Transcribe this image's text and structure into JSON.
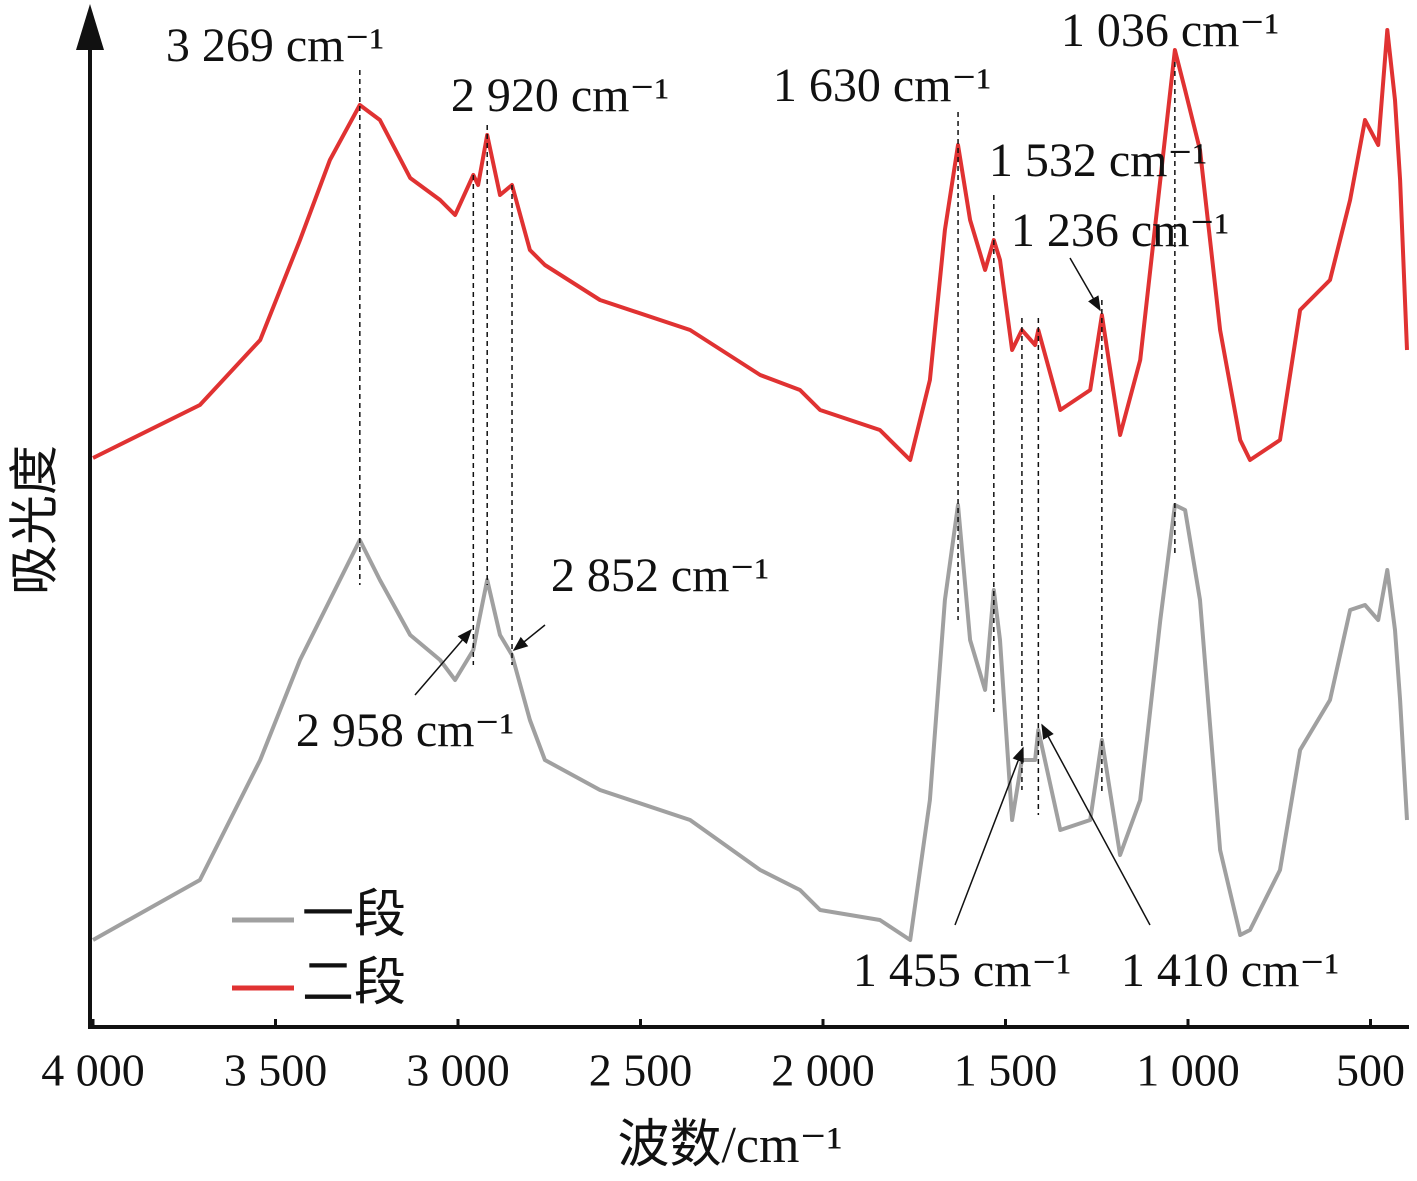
{
  "chart_data": {
    "type": "line",
    "y_label": "吸光度",
    "x_label": "波数/cm⁻¹",
    "xlim": [
      4000,
      400
    ],
    "ylim": [
      0,
      100
    ],
    "xticks": [
      {
        "value": 4000,
        "label": "4 000"
      },
      {
        "value": 3500,
        "label": "3 500"
      },
      {
        "value": 3000,
        "label": "3 000"
      },
      {
        "value": 2500,
        "label": "2 500"
      },
      {
        "value": 2000,
        "label": "2 000"
      },
      {
        "value": 1500,
        "label": "1 500"
      },
      {
        "value": 1000,
        "label": "1 000"
      },
      500
    ],
    "legend": "lower left",
    "x": [
      4000,
      3707,
      3542,
      3433,
      3351,
      3269,
      3214,
      3131,
      3049,
      3008,
      2958,
      2945,
      2920,
      2885,
      2852,
      2803,
      2762,
      2611,
      2364,
      2172,
      2063,
      2008,
      1844,
      1761,
      1707,
      1666,
      1630,
      1597,
      1556,
      1532,
      1515,
      1482,
      1455,
      1419,
      1410,
      1350,
      1268,
      1236,
      1186,
      1131,
      1076,
      1036,
      1008,
      967,
      912,
      857,
      830,
      748,
      693,
      611,
      556,
      515,
      479,
      454,
      433,
      419,
      400
    ],
    "series": [
      {
        "name": "一段",
        "color": "#a0a0a0",
        "values": [
          8.7,
          14.7,
          26.7,
          36.7,
          42.7,
          48.7,
          44.7,
          39.2,
          36.7,
          34.7,
          37.7,
          40.2,
          44.7,
          39.2,
          37.2,
          30.7,
          26.7,
          23.7,
          20.7,
          15.7,
          13.7,
          11.7,
          10.7,
          8.7,
          22.7,
          42.7,
          52.2,
          38.7,
          33.7,
          43.7,
          38.7,
          20.7,
          26.7,
          26.7,
          29.7,
          19.7,
          20.7,
          28.7,
          17.2,
          22.7,
          40.7,
          52.2,
          51.7,
          42.7,
          17.7,
          9.2,
          9.7,
          15.7,
          27.7,
          32.7,
          41.7,
          42.2,
          40.7,
          45.7,
          39.7,
          32.7,
          20.7
        ]
      },
      {
        "name": "二段",
        "color": "#e03232",
        "values": [
          56.9,
          62.2,
          68.7,
          78.7,
          86.7,
          92.2,
          90.7,
          84.9,
          82.7,
          81.2,
          85.2,
          84.2,
          89.2,
          83.2,
          84.2,
          77.7,
          76.2,
          72.7,
          69.7,
          65.2,
          63.7,
          61.7,
          59.7,
          56.7,
          64.7,
          79.7,
          88.2,
          80.7,
          75.7,
          78.7,
          76.7,
          67.7,
          69.7,
          68.2,
          69.7,
          61.7,
          63.7,
          71.2,
          59.2,
          66.7,
          84.7,
          97.7,
          93.7,
          87.7,
          69.7,
          58.7,
          56.7,
          58.7,
          71.7,
          74.7,
          82.7,
          90.7,
          88.2,
          99.7,
          92.7,
          84.7,
          67.7
        ]
      }
    ],
    "annotations": [
      {
        "text": "3 269 cm⁻¹",
        "x": 3269
      },
      {
        "text": "2 920 cm⁻¹",
        "x": 2920
      },
      {
        "text": "1 630 cm⁻¹",
        "x": 1630
      },
      {
        "text": "1 532 cm⁻¹",
        "x": 1532
      },
      {
        "text": "1 236 cm⁻¹",
        "x": 1236
      },
      {
        "text": "1 036 cm⁻¹",
        "x": 1036
      },
      {
        "text": "2 852 cm⁻¹",
        "x": 2852
      },
      {
        "text": "2 958 cm⁻¹",
        "x": 2958
      },
      {
        "text": "1 455 cm⁻¹",
        "x": 1455
      },
      {
        "text": "1 410 cm⁻¹",
        "x": 1410
      }
    ]
  }
}
